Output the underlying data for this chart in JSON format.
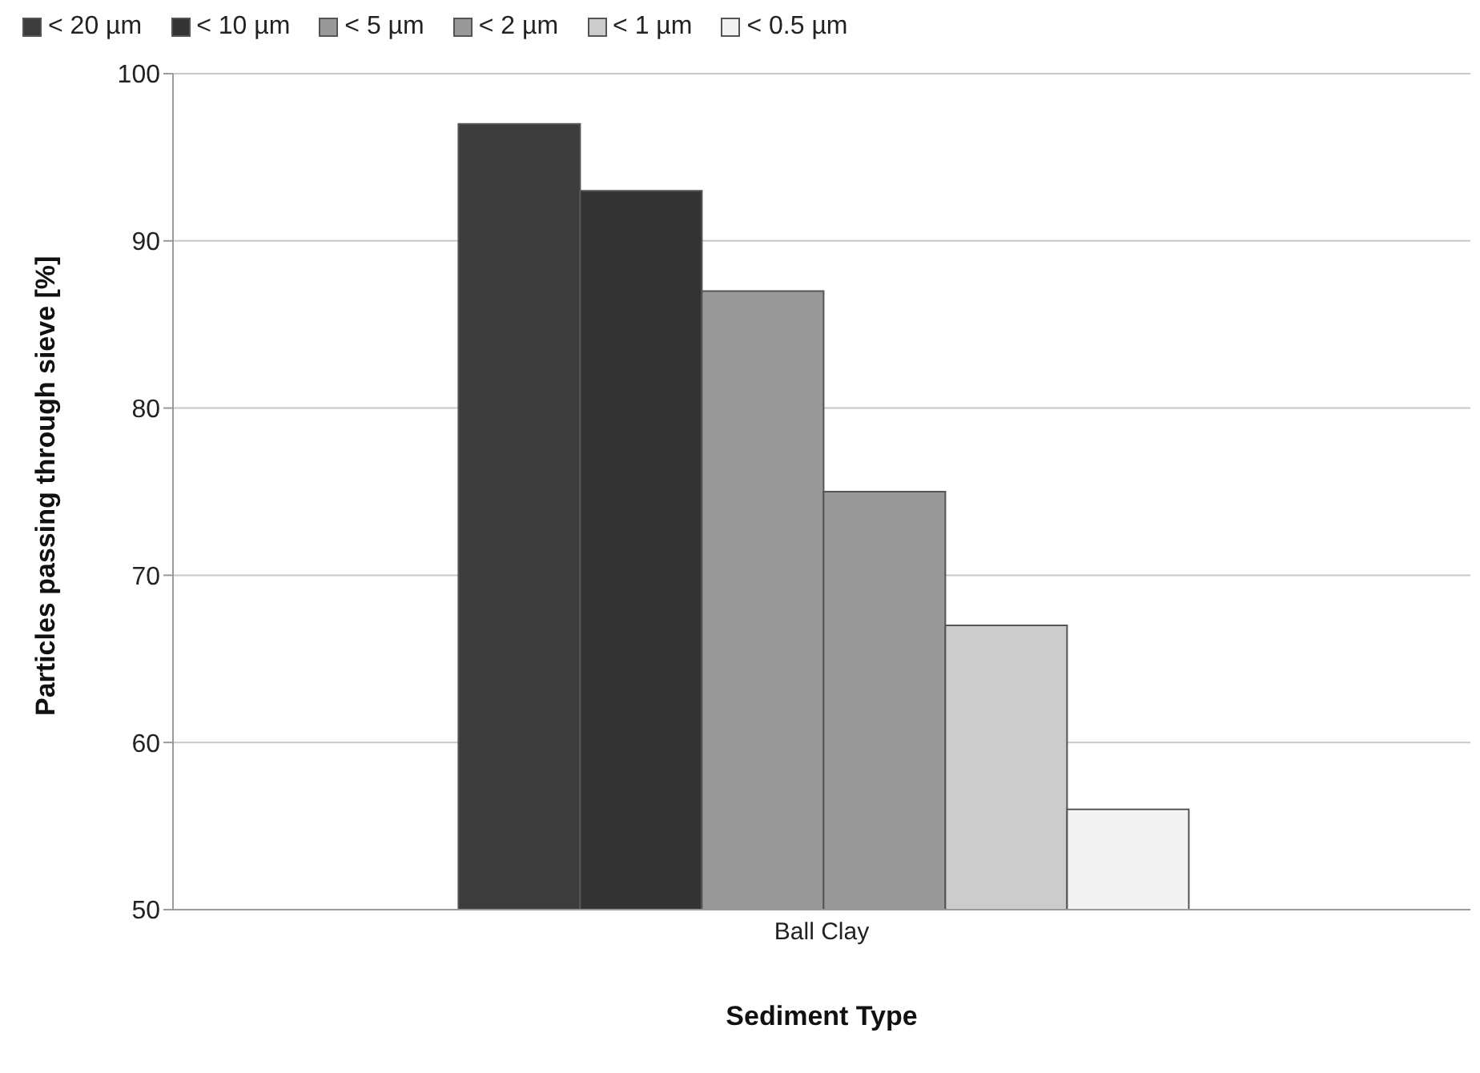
{
  "chart_data": {
    "type": "bar",
    "xlabel": "Sediment Type",
    "ylabel": "Particles passing through sieve [%]",
    "categories": [
      "Ball Clay"
    ],
    "series": [
      {
        "name": "< 20 µm",
        "color": "#3c3c3c",
        "values": [
          97
        ]
      },
      {
        "name": "< 10 µm",
        "color": "#333333",
        "values": [
          93
        ]
      },
      {
        "name": "< 5 µm",
        "color": "#999999",
        "values": [
          87
        ]
      },
      {
        "name": "< 2 µm",
        "color": "#999999",
        "values": [
          75
        ]
      },
      {
        "name": "< 1 µm",
        "color": "#cccccc",
        "values": [
          67
        ]
      },
      {
        "name": "< 0.5 µm",
        "color": "#f3f3f3",
        "values": [
          56
        ]
      }
    ],
    "ylim": [
      50,
      100
    ],
    "yticks": [
      50,
      60,
      70,
      80,
      90,
      100
    ],
    "grid": "y",
    "legend": "top left"
  }
}
